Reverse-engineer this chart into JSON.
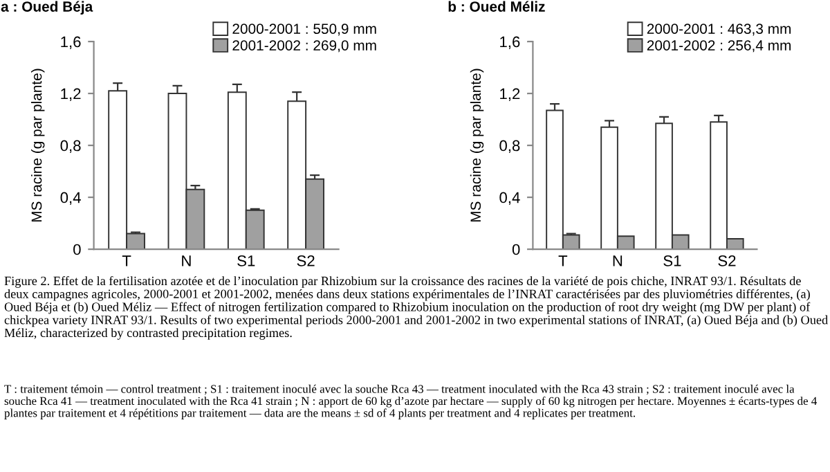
{
  "chart_data": [
    {
      "type": "bar",
      "title": "a : Oued Béja",
      "ylabel": "MS racine (g par plante)",
      "categories": [
        "T",
        "N",
        "S1",
        "S2"
      ],
      "series": [
        {
          "name": "2000-2001 : 550,9 mm",
          "color": "#ffffff",
          "values": [
            1.22,
            1.2,
            1.21,
            1.14
          ],
          "errors": [
            0.06,
            0.06,
            0.06,
            0.07
          ]
        },
        {
          "name": "2001-2002 : 269,0 mm",
          "color": "#a0a0a0",
          "values": [
            0.12,
            0.46,
            0.3,
            0.54
          ],
          "errors": [
            0.01,
            0.03,
            0.01,
            0.03
          ]
        }
      ],
      "ylim": [
        0,
        1.6
      ],
      "yticks": [
        0,
        {
          "value": 0.4,
          "label": "0,4"
        },
        {
          "value": 0.8,
          "label": "0,8"
        },
        {
          "value": 1.2,
          "label": "1,2"
        },
        {
          "value": 1.6,
          "label": "1,6"
        }
      ],
      "legend": "top right",
      "grid": false,
      "annotations": [
        "Figure 2. Effet de la fertilisation azotée et de l’inoculation par Rhizobium sur la croissance des racines de la variété de pois chiche, INRAT 93/1. Résultats de deux campagnes agricoles, 2000-2001 et 2001-2002, menées dans deux stations expérimentales de l’INRAT caractérisées par des pluviométries différentes, (a) Oued Béja et (b) Oued Méliz — Effect of nitrogen fertilization compared to Rhizobium inoculation on the production of root dry weight (mg DW per plant) of chickpea variety INRAT 93/1. Results of two experimental periods 2000-2001 and 2001-2002 in two experimental stations of INRAT, (a) Oued Béja and (b) Oued Méliz, characterized by contrasted precipitation regimes.",
        "T : traitement témoin — control treatment ; S1 : traitement inoculé avec la souche Rca 43 — treatment inoculated with the Rca 43 strain ; S2 : traitement inoculé avec la souche Rca 41 — treatment inoculated with the Rca 41 strain ; N : apport de 60 kg d’azote par hectare — supply of 60 kg nitrogen per hectare. Moyennes ± écarts-types de 4 plantes par traitement et 4 répétitions par traitement — data are the means ± sd of 4 plants per treatment and 4 replicates per treatment."
      ]
    },
    {
      "type": "bar",
      "title": "b : Oued Méliz",
      "ylabel": "MS racine (g par plante)",
      "categories": [
        "T",
        "N",
        "S1",
        "S2"
      ],
      "series": [
        {
          "name": "2000-2001 : 463,3 mm",
          "color": "#ffffff",
          "values": [
            1.07,
            0.94,
            0.97,
            0.98
          ],
          "errors": [
            0.05,
            0.05,
            0.05,
            0.05
          ]
        },
        {
          "name": "2001-2002 : 256,4 mm",
          "color": "#a0a0a0",
          "values": [
            0.11,
            0.1,
            0.11,
            0.08
          ],
          "errors": [
            0.01,
            null,
            null,
            null
          ]
        }
      ],
      "ylim": [
        0,
        1.6
      ],
      "yticks": [
        0,
        {
          "value": 0.4,
          "label": "0,4"
        },
        {
          "value": 0.8,
          "label": "0,8"
        },
        {
          "value": 1.2,
          "label": "1,2"
        },
        {
          "value": 1.6,
          "label": "1,6"
        }
      ],
      "legend": "top right",
      "grid": false
    }
  ]
}
